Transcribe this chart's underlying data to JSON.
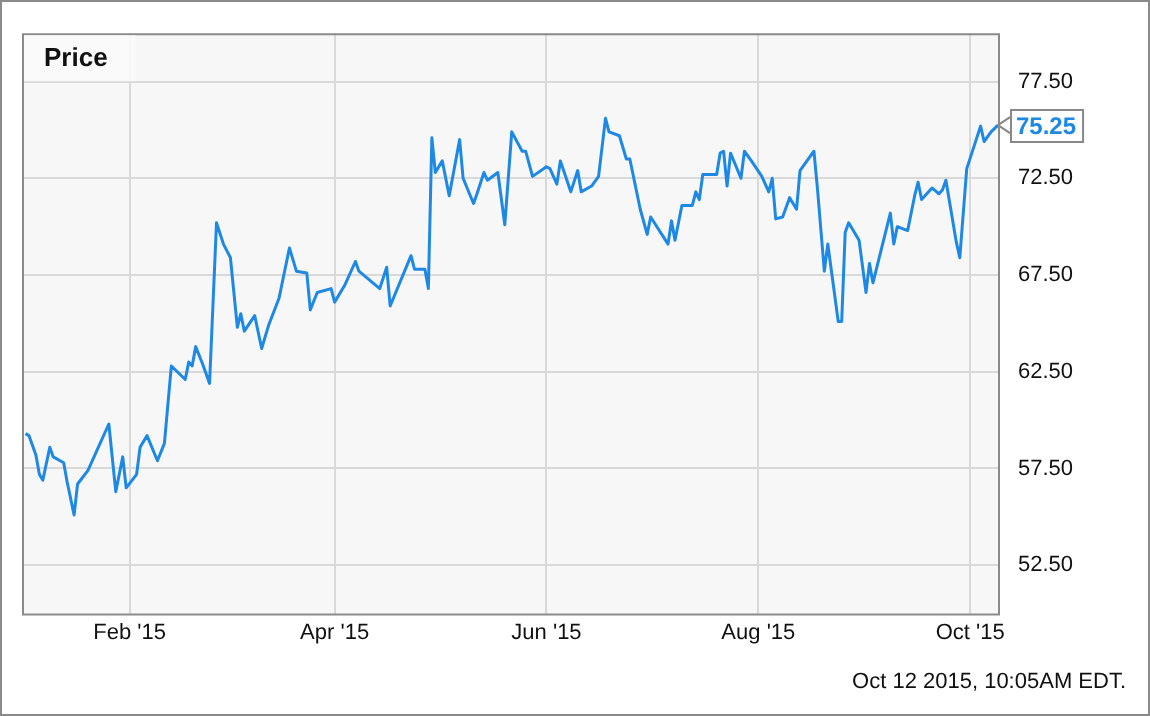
{
  "chart_data": {
    "type": "line",
    "title": "Price",
    "annotations": [
      {
        "text": "75.25",
        "x": "2015-10-09",
        "y": 75.25
      },
      "Oct 12 2015, 10:05AM EDT."
    ],
    "x": [
      "2015-01-02",
      "2015-01-03",
      "2015-01-05",
      "2015-01-06",
      "2015-01-07",
      "2015-01-09",
      "2015-01-10",
      "2015-01-13",
      "2015-01-14",
      "2015-01-16",
      "2015-01-17",
      "2015-01-20",
      "2015-01-23",
      "2015-01-26",
      "2015-01-28",
      "2015-01-30",
      "2015-01-31",
      "2015-02-03",
      "2015-02-04",
      "2015-02-06",
      "2015-02-09",
      "2015-02-11",
      "2015-02-13",
      "2015-02-17",
      "2015-02-18",
      "2015-02-19",
      "2015-02-20",
      "2015-02-22",
      "2015-02-24",
      "2015-02-26",
      "2015-02-28",
      "2015-03-02",
      "2015-03-04",
      "2015-03-05",
      "2015-03-06",
      "2015-03-09",
      "2015-03-11",
      "2015-03-13",
      "2015-03-16",
      "2015-03-19",
      "2015-03-21",
      "2015-03-24",
      "2015-03-25",
      "2015-03-27",
      "2015-03-31",
      "2015-04-01",
      "2015-04-04",
      "2015-04-07",
      "2015-04-08",
      "2015-04-14",
      "2015-04-16",
      "2015-04-17",
      "2015-04-23",
      "2015-04-24",
      "2015-04-27",
      "2015-04-28",
      "2015-04-29",
      "2015-04-30",
      "2015-05-02",
      "2015-05-04",
      "2015-05-07",
      "2015-05-08",
      "2015-05-11",
      "2015-05-12",
      "2015-05-14",
      "2015-05-15",
      "2015-05-18",
      "2015-05-20",
      "2015-05-22",
      "2015-05-25",
      "2015-05-26",
      "2015-05-28",
      "2015-06-01",
      "2015-06-02",
      "2015-06-04",
      "2015-06-05",
      "2015-06-08",
      "2015-06-10",
      "2015-06-11",
      "2015-06-14",
      "2015-06-16",
      "2015-06-18",
      "2015-06-19",
      "2015-06-22",
      "2015-06-24",
      "2015-06-25",
      "2015-06-28",
      "2015-06-30",
      "2015-07-01",
      "2015-07-06",
      "2015-07-07",
      "2015-07-08",
      "2015-07-10",
      "2015-07-13",
      "2015-07-14",
      "2015-07-15",
      "2015-07-16",
      "2015-07-20",
      "2015-07-21",
      "2015-07-22",
      "2015-07-23",
      "2015-07-24",
      "2015-07-27",
      "2015-07-28",
      "2015-07-30",
      "2015-08-02",
      "2015-08-04",
      "2015-08-05",
      "2015-08-06",
      "2015-08-08",
      "2015-08-10",
      "2015-08-12",
      "2015-08-13",
      "2015-08-17",
      "2015-08-18",
      "2015-08-20",
      "2015-08-21",
      "2015-08-24",
      "2015-08-25",
      "2015-08-26",
      "2015-08-27",
      "2015-08-30",
      "2015-09-01",
      "2015-09-02",
      "2015-09-03",
      "2015-09-08",
      "2015-09-09",
      "2015-09-10",
      "2015-09-13",
      "2015-09-15",
      "2015-09-16",
      "2015-09-17",
      "2015-09-20",
      "2015-09-22",
      "2015-09-23",
      "2015-09-24",
      "2015-09-27",
      "2015-09-28",
      "2015-09-30",
      "2015-10-02",
      "2015-10-04",
      "2015-10-05",
      "2015-10-07",
      "2015-10-09"
    ],
    "series": [
      {
        "color": "#1e88e5",
        "values": [
          59.3,
          59.2,
          58.2,
          57.2,
          56.9,
          58.6,
          58.1,
          57.8,
          56.8,
          55.1,
          56.7,
          57.4,
          58.6,
          59.8,
          56.3,
          58.1,
          56.5,
          57.2,
          58.6,
          59.2,
          57.9,
          58.8,
          62.8,
          62.1,
          63.0,
          62.8,
          63.8,
          62.9,
          61.9,
          70.2,
          69.1,
          68.4,
          64.8,
          65.5,
          64.6,
          65.4,
          63.7,
          64.9,
          66.3,
          68.9,
          67.7,
          67.6,
          65.7,
          66.6,
          66.8,
          66.1,
          67.0,
          68.2,
          67.7,
          66.8,
          67.9,
          65.9,
          68.5,
          67.8,
          67.8,
          66.8,
          74.6,
          72.8,
          73.4,
          71.6,
          74.5,
          72.5,
          71.2,
          71.7,
          72.8,
          72.4,
          72.8,
          70.1,
          74.9,
          73.9,
          73.9,
          72.6,
          73.1,
          73.0,
          72.2,
          73.4,
          71.8,
          72.9,
          71.8,
          72.1,
          72.6,
          75.6,
          74.9,
          74.7,
          73.5,
          73.5,
          70.9,
          69.6,
          70.5,
          69.1,
          70.3,
          69.3,
          71.1,
          71.1,
          71.8,
          71.4,
          72.7,
          72.7,
          73.8,
          73.9,
          72.1,
          73.8,
          72.5,
          73.9,
          73.4,
          72.6,
          71.8,
          72.5,
          70.4,
          70.5,
          71.5,
          70.9,
          72.9,
          73.9,
          72.0,
          67.7,
          69.1,
          65.1,
          65.1,
          69.7,
          70.2,
          69.3,
          66.6,
          68.1,
          67.1,
          70.7,
          69.1,
          70.0,
          69.8,
          71.6,
          72.3,
          71.4,
          72.0,
          71.7,
          71.9,
          72.4,
          69.2,
          68.4,
          73.0,
          74.1,
          75.2,
          74.4,
          74.9,
          75.25
        ]
      }
    ],
    "xlim": [
      "2015-01-01",
      "2015-10-09"
    ],
    "xticks": [
      {
        "value": "2015-02-01",
        "label": "Feb '15"
      },
      {
        "value": "2015-04-01",
        "label": "Apr '15"
      },
      {
        "value": "2015-06-01",
        "label": "Jun '15"
      },
      {
        "value": "2015-08-01",
        "label": "Aug '15"
      },
      {
        "value": "2015-10-01",
        "label": "Oct '15"
      }
    ],
    "ylim": [
      50,
      80
    ],
    "yticks": [
      {
        "value": 52.5,
        "label": "52.50"
      },
      {
        "value": 57.5,
        "label": "57.50"
      },
      {
        "value": 62.5,
        "label": "62.50"
      },
      {
        "value": 67.5,
        "label": "67.50"
      },
      {
        "value": 72.5,
        "label": "72.50"
      },
      {
        "value": 77.5,
        "label": "77.50"
      }
    ],
    "grid": true,
    "legend": false,
    "marker": "none",
    "line_style": "solid"
  }
}
